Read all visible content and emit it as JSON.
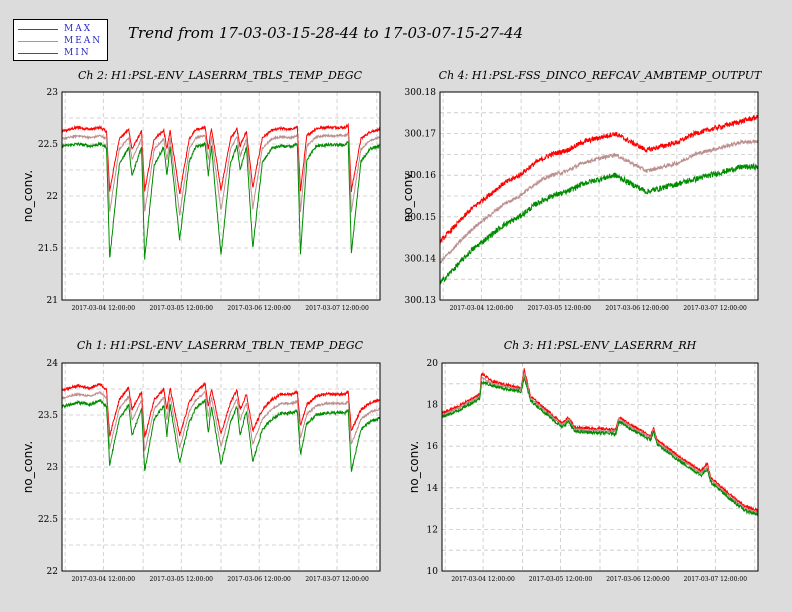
{
  "title": "Trend from 17-03-03-15-28-44 to 17-03-07-15-27-44",
  "legend": [
    {
      "label": "MAX",
      "color": "#ff0000"
    },
    {
      "label": "MEAN",
      "color": "#bc8f8f"
    },
    {
      "label": "MIN",
      "color": "#008c00"
    }
  ],
  "colors": {
    "max": "#ff0000",
    "mean": "#bc8f8f",
    "min": "#008c00",
    "grid": "#c8c8c8"
  },
  "chart_data": [
    {
      "type": "line",
      "title": "Ch 2: H1:PSL-ENV_LASERRM_TBLS_TEMP_DEGC",
      "ylabel": "no_conv.",
      "ylim": [
        21,
        23
      ],
      "yticks": [
        "21",
        "21.5",
        "22",
        "22.5",
        "23"
      ],
      "xticks": [
        "2017-03-04 12:00:00",
        "2017-03-05 12:00:00",
        "2017-03-06 12:00:00",
        "2017-03-07 12:00:00"
      ],
      "grid": true,
      "series": [
        {
          "name": "MAX",
          "x": [
            0.0,
            0.05,
            0.09,
            0.12,
            0.14,
            0.15,
            0.18,
            0.21,
            0.22,
            0.25,
            0.26,
            0.29,
            0.32,
            0.33,
            0.34,
            0.37,
            0.4,
            0.42,
            0.45,
            0.46,
            0.47,
            0.5,
            0.53,
            0.55,
            0.56,
            0.58,
            0.6,
            0.63,
            0.66,
            0.69,
            0.72,
            0.74,
            0.75,
            0.77,
            0.8,
            0.83,
            0.86,
            0.89,
            0.9,
            0.91,
            0.94,
            0.97,
            1.0
          ],
          "y": [
            22.62,
            22.66,
            22.64,
            22.66,
            22.62,
            22.05,
            22.55,
            22.64,
            22.45,
            22.62,
            22.05,
            22.55,
            22.63,
            22.45,
            22.63,
            22.02,
            22.55,
            22.64,
            22.66,
            22.45,
            22.65,
            22.06,
            22.55,
            22.65,
            22.48,
            22.62,
            22.08,
            22.56,
            22.63,
            22.65,
            22.64,
            22.66,
            22.05,
            22.58,
            22.65,
            22.66,
            22.66,
            22.66,
            22.68,
            22.05,
            22.55,
            22.62,
            22.64
          ]
        },
        {
          "name": "MEAN",
          "x": [
            0.0,
            0.05,
            0.09,
            0.12,
            0.14,
            0.15,
            0.18,
            0.21,
            0.22,
            0.25,
            0.26,
            0.29,
            0.32,
            0.33,
            0.34,
            0.37,
            0.4,
            0.42,
            0.45,
            0.46,
            0.47,
            0.5,
            0.53,
            0.55,
            0.56,
            0.58,
            0.6,
            0.63,
            0.66,
            0.69,
            0.72,
            0.74,
            0.75,
            0.77,
            0.8,
            0.83,
            0.86,
            0.89,
            0.9,
            0.91,
            0.94,
            0.97,
            1.0
          ],
          "y": [
            22.55,
            22.58,
            22.56,
            22.58,
            22.55,
            21.85,
            22.45,
            22.56,
            22.35,
            22.55,
            21.85,
            22.45,
            22.55,
            22.35,
            22.55,
            21.82,
            22.45,
            22.56,
            22.58,
            22.35,
            22.57,
            21.86,
            22.45,
            22.57,
            22.38,
            22.55,
            21.88,
            22.46,
            22.55,
            22.57,
            22.56,
            22.58,
            21.85,
            22.48,
            22.57,
            22.58,
            22.58,
            22.58,
            22.6,
            21.85,
            22.45,
            22.54,
            22.56
          ]
        },
        {
          "name": "MIN",
          "x": [
            0.0,
            0.05,
            0.09,
            0.12,
            0.14,
            0.15,
            0.18,
            0.21,
            0.22,
            0.25,
            0.26,
            0.29,
            0.32,
            0.33,
            0.34,
            0.37,
            0.4,
            0.42,
            0.45,
            0.46,
            0.47,
            0.5,
            0.53,
            0.55,
            0.56,
            0.58,
            0.6,
            0.63,
            0.66,
            0.69,
            0.72,
            0.74,
            0.75,
            0.77,
            0.8,
            0.83,
            0.86,
            0.89,
            0.9,
            0.91,
            0.94,
            0.97,
            1.0
          ],
          "y": [
            22.48,
            22.5,
            22.48,
            22.5,
            22.47,
            21.4,
            22.3,
            22.47,
            22.2,
            22.47,
            21.4,
            22.3,
            22.47,
            22.2,
            22.47,
            21.58,
            22.33,
            22.47,
            22.5,
            22.2,
            22.48,
            21.43,
            22.32,
            22.48,
            22.25,
            22.47,
            21.5,
            22.32,
            22.46,
            22.48,
            22.47,
            22.5,
            21.45,
            22.35,
            22.48,
            22.49,
            22.49,
            22.49,
            22.52,
            21.45,
            22.33,
            22.46,
            22.48
          ]
        }
      ]
    },
    {
      "type": "line",
      "title": "Ch 4: H1:PSL-FSS_DINCO_REFCAV_AMBTEMP_OUTPUT",
      "ylabel": "no_conv.",
      "ylim": [
        300.13,
        300.18
      ],
      "yticks": [
        "300.13",
        "300.14",
        "300.15",
        "300.16",
        "300.17",
        "300.18"
      ],
      "xticks": [
        "2017-03-04 12:00:00",
        "2017-03-05 12:00:00",
        "2017-03-06 12:00:00",
        "2017-03-07 12:00:00"
      ],
      "grid": true,
      "series": [
        {
          "name": "MAX",
          "x": [
            0.0,
            0.05,
            0.1,
            0.15,
            0.2,
            0.25,
            0.3,
            0.35,
            0.4,
            0.45,
            0.5,
            0.55,
            0.6,
            0.65,
            0.7,
            0.75,
            0.8,
            0.85,
            0.9,
            0.95,
            1.0
          ],
          "y": [
            300.144,
            300.148,
            300.152,
            300.155,
            300.158,
            300.16,
            300.163,
            300.165,
            300.166,
            300.168,
            300.169,
            300.17,
            300.168,
            300.166,
            300.167,
            300.168,
            300.17,
            300.171,
            300.172,
            300.173,
            300.174
          ]
        },
        {
          "name": "MEAN",
          "x": [
            0.0,
            0.05,
            0.1,
            0.15,
            0.2,
            0.25,
            0.3,
            0.35,
            0.4,
            0.45,
            0.5,
            0.55,
            0.6,
            0.65,
            0.7,
            0.75,
            0.8,
            0.85,
            0.9,
            0.95,
            1.0
          ],
          "y": [
            300.139,
            300.143,
            300.147,
            300.15,
            300.153,
            300.155,
            300.158,
            300.16,
            300.161,
            300.163,
            300.164,
            300.165,
            300.163,
            300.161,
            300.162,
            300.163,
            300.165,
            300.166,
            300.167,
            300.168,
            300.168
          ]
        },
        {
          "name": "MIN",
          "x": [
            0.0,
            0.05,
            0.1,
            0.15,
            0.2,
            0.25,
            0.3,
            0.35,
            0.4,
            0.45,
            0.5,
            0.55,
            0.6,
            0.65,
            0.7,
            0.75,
            0.8,
            0.85,
            0.9,
            0.95,
            1.0
          ],
          "y": [
            300.134,
            300.138,
            300.142,
            300.145,
            300.148,
            300.15,
            300.153,
            300.155,
            300.156,
            300.158,
            300.159,
            300.16,
            300.158,
            300.156,
            300.157,
            300.158,
            300.159,
            300.16,
            300.161,
            300.162,
            300.162
          ]
        }
      ]
    },
    {
      "type": "line",
      "title": "Ch 1: H1:PSL-ENV_LASERRM_TBLN_TEMP_DEGC",
      "ylabel": "no_conv.",
      "ylim": [
        22,
        24
      ],
      "yticks": [
        "22",
        "22.5",
        "23",
        "23.5",
        "24"
      ],
      "xticks": [
        "2017-03-04 12:00:00",
        "2017-03-05 12:00:00",
        "2017-03-06 12:00:00",
        "2017-03-07 12:00:00"
      ],
      "grid": true,
      "series": [
        {
          "name": "MAX",
          "x": [
            0.0,
            0.05,
            0.09,
            0.12,
            0.14,
            0.15,
            0.18,
            0.21,
            0.22,
            0.25,
            0.26,
            0.29,
            0.32,
            0.33,
            0.34,
            0.37,
            0.4,
            0.42,
            0.45,
            0.46,
            0.47,
            0.5,
            0.53,
            0.55,
            0.56,
            0.58,
            0.6,
            0.63,
            0.66,
            0.69,
            0.72,
            0.74,
            0.75,
            0.77,
            0.8,
            0.83,
            0.86,
            0.89,
            0.9,
            0.91,
            0.94,
            0.97,
            1.0
          ],
          "y": [
            23.74,
            23.78,
            23.76,
            23.8,
            23.74,
            23.3,
            23.65,
            23.76,
            23.55,
            23.72,
            23.28,
            23.65,
            23.75,
            23.55,
            23.76,
            23.3,
            23.62,
            23.72,
            23.8,
            23.58,
            23.75,
            23.32,
            23.62,
            23.74,
            23.55,
            23.7,
            23.35,
            23.55,
            23.65,
            23.7,
            23.7,
            23.72,
            23.4,
            23.6,
            23.68,
            23.7,
            23.7,
            23.7,
            23.72,
            23.35,
            23.55,
            23.62,
            23.65
          ]
        },
        {
          "name": "MEAN",
          "x": [
            0.0,
            0.05,
            0.09,
            0.12,
            0.14,
            0.15,
            0.18,
            0.21,
            0.22,
            0.25,
            0.26,
            0.29,
            0.32,
            0.33,
            0.34,
            0.37,
            0.4,
            0.42,
            0.45,
            0.46,
            0.47,
            0.5,
            0.53,
            0.55,
            0.56,
            0.58,
            0.6,
            0.63,
            0.66,
            0.69,
            0.72,
            0.74,
            0.75,
            0.77,
            0.8,
            0.83,
            0.86,
            0.89,
            0.9,
            0.91,
            0.94,
            0.97,
            1.0
          ],
          "y": [
            23.66,
            23.7,
            23.68,
            23.72,
            23.66,
            23.18,
            23.56,
            23.68,
            23.45,
            23.64,
            23.15,
            23.56,
            23.67,
            23.45,
            23.68,
            23.18,
            23.53,
            23.64,
            23.72,
            23.48,
            23.67,
            23.2,
            23.53,
            23.66,
            23.45,
            23.62,
            23.22,
            23.46,
            23.56,
            23.61,
            23.61,
            23.63,
            23.28,
            23.51,
            23.59,
            23.61,
            23.61,
            23.61,
            23.63,
            23.22,
            23.46,
            23.53,
            23.56
          ]
        },
        {
          "name": "MIN",
          "x": [
            0.0,
            0.05,
            0.09,
            0.12,
            0.14,
            0.15,
            0.18,
            0.21,
            0.22,
            0.25,
            0.26,
            0.29,
            0.32,
            0.33,
            0.34,
            0.37,
            0.4,
            0.42,
            0.45,
            0.46,
            0.47,
            0.5,
            0.53,
            0.55,
            0.56,
            0.58,
            0.6,
            0.63,
            0.66,
            0.69,
            0.72,
            0.74,
            0.75,
            0.77,
            0.8,
            0.83,
            0.86,
            0.89,
            0.9,
            0.91,
            0.94,
            0.97,
            1.0
          ],
          "y": [
            23.58,
            23.62,
            23.6,
            23.64,
            23.58,
            23.02,
            23.46,
            23.6,
            23.3,
            23.56,
            22.96,
            23.46,
            23.59,
            23.3,
            23.6,
            23.04,
            23.43,
            23.56,
            23.64,
            23.32,
            23.59,
            23.02,
            23.43,
            23.58,
            23.3,
            23.54,
            23.05,
            23.36,
            23.46,
            23.52,
            23.52,
            23.54,
            23.12,
            23.42,
            23.5,
            23.52,
            23.52,
            23.52,
            23.54,
            22.96,
            23.36,
            23.44,
            23.47
          ]
        }
      ]
    },
    {
      "type": "line",
      "title": "Ch 3: H1:PSL-ENV_LASERRM_RH",
      "ylabel": "no_conv.",
      "ylim": [
        10,
        20
      ],
      "yticks": [
        "10",
        "12",
        "14",
        "16",
        "18",
        "20"
      ],
      "xticks": [
        "2017-03-04 12:00:00",
        "2017-03-05 12:00:00",
        "2017-03-06 12:00:00",
        "2017-03-07 12:00:00"
      ],
      "grid": true,
      "series": [
        {
          "name": "MAX",
          "x": [
            0.0,
            0.05,
            0.12,
            0.125,
            0.16,
            0.25,
            0.26,
            0.28,
            0.38,
            0.4,
            0.42,
            0.55,
            0.56,
            0.6,
            0.66,
            0.67,
            0.68,
            0.75,
            0.82,
            0.84,
            0.85,
            0.9,
            0.96,
            1.0
          ],
          "y": [
            17.6,
            17.9,
            18.5,
            19.5,
            19.1,
            18.8,
            19.7,
            18.4,
            17.1,
            17.4,
            16.9,
            16.8,
            17.4,
            17.0,
            16.5,
            16.9,
            16.3,
            15.5,
            14.8,
            15.2,
            14.5,
            13.8,
            13.1,
            12.9
          ]
        },
        {
          "name": "MEAN",
          "x": [
            0.0,
            0.05,
            0.12,
            0.125,
            0.16,
            0.25,
            0.26,
            0.28,
            0.38,
            0.4,
            0.42,
            0.55,
            0.56,
            0.6,
            0.66,
            0.67,
            0.68,
            0.75,
            0.82,
            0.84,
            0.85,
            0.9,
            0.96,
            1.0
          ],
          "y": [
            17.5,
            17.8,
            18.4,
            19.3,
            19.0,
            18.7,
            19.5,
            18.3,
            17.0,
            17.3,
            16.8,
            16.7,
            17.3,
            16.9,
            16.4,
            16.8,
            16.2,
            15.4,
            14.7,
            15.0,
            14.4,
            13.7,
            13.0,
            12.8
          ]
        },
        {
          "name": "MIN",
          "x": [
            0.0,
            0.05,
            0.12,
            0.125,
            0.16,
            0.25,
            0.26,
            0.28,
            0.38,
            0.4,
            0.42,
            0.55,
            0.56,
            0.6,
            0.66,
            0.67,
            0.68,
            0.75,
            0.82,
            0.84,
            0.85,
            0.9,
            0.96,
            1.0
          ],
          "y": [
            17.4,
            17.7,
            18.3,
            19.1,
            18.9,
            18.6,
            19.3,
            18.2,
            16.9,
            17.2,
            16.7,
            16.6,
            17.2,
            16.8,
            16.3,
            16.7,
            16.1,
            15.3,
            14.6,
            14.9,
            14.3,
            13.6,
            12.9,
            12.7
          ]
        }
      ]
    }
  ]
}
